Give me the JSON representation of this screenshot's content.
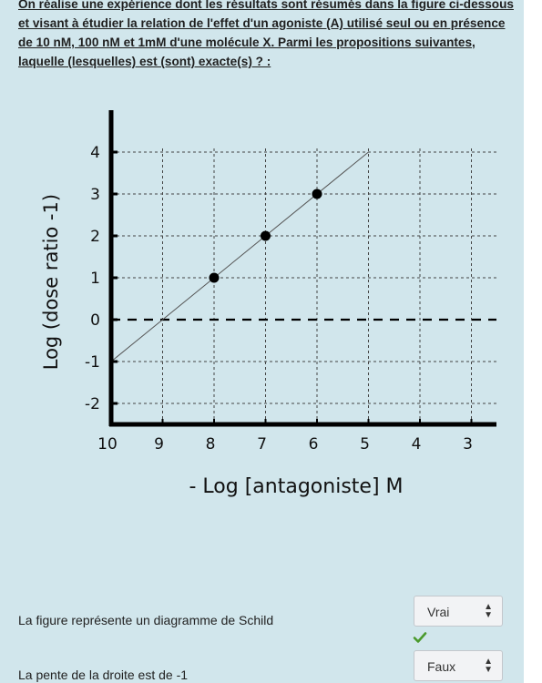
{
  "question": {
    "text": "On réalise une expérience dont les résultats sont résumés dans la figure ci-dessous et visant à étudier la relation de l'effet d'un agoniste (A) utilisé seul ou en présence de 10 nM, 100 nM et 1mM d'une molécule X. Parmi les propositions suivantes, laquelle (lesquelles) est (sont) exacte(s) ? :"
  },
  "chart_data": {
    "type": "scatter",
    "xlabel": "- Log [antagoniste] M",
    "ylabel": "Log (dose ratio -1)",
    "x_ticks": [
      "10",
      "9",
      "8",
      "7",
      "6",
      "5",
      "4",
      "3"
    ],
    "y_ticks": [
      "4",
      "3",
      "2",
      "1",
      "0",
      "-1",
      "-2"
    ],
    "xlim": [
      10,
      2.5
    ],
    "ylim": [
      -2.5,
      4.2
    ],
    "x_reversed": true,
    "grid": true,
    "points": [
      {
        "x": 8,
        "y": 1
      },
      {
        "x": 7,
        "y": 2
      },
      {
        "x": 6,
        "y": 3
      }
    ],
    "fit_line": {
      "x1": 10,
      "y1": -1,
      "x2": 5,
      "y2": 4
    },
    "reference_line": {
      "y": 0,
      "style": "dashed"
    },
    "colors": {
      "points": "#000000",
      "line": "#555555",
      "grid": "#444444"
    }
  },
  "answers": [
    {
      "text": "La figure représente un diagramme de Schild",
      "selected": "Vrai",
      "status": "correct-check"
    },
    {
      "text": "La pente de la droite est de -1",
      "selected": "Faux"
    }
  ],
  "colors": {
    "panel_bg": "#d1e6ec",
    "check": "#4a9a2c"
  }
}
